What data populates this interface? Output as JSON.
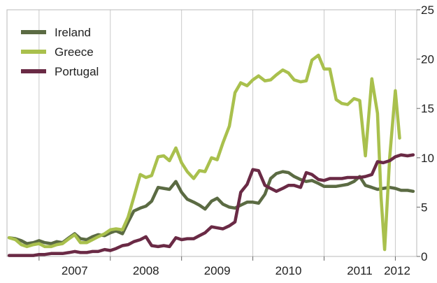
{
  "chart_data": {
    "type": "line",
    "title": "",
    "xlabel": "",
    "ylabel": "",
    "x_ticks": [
      "2007",
      "2008",
      "2009",
      "2010",
      "2011",
      "2012"
    ],
    "y_ticks": [
      "0",
      "5",
      "10",
      "15",
      "20",
      "25"
    ],
    "xlim": [
      2006.55,
      2012.3
    ],
    "ylim": [
      0,
      25
    ],
    "y_axis_side": "right",
    "grid": "vertical gridlines at year boundaries",
    "legend_position": "top-left",
    "series": [
      {
        "name": "Ireland",
        "color": "#5b6b43",
        "points": [
          [
            2006.58,
            1.9
          ],
          [
            2006.67,
            1.8
          ],
          [
            2006.75,
            1.6
          ],
          [
            2006.83,
            1.3
          ],
          [
            2006.92,
            1.4
          ],
          [
            2007.0,
            1.6
          ],
          [
            2007.08,
            1.4
          ],
          [
            2007.17,
            1.3
          ],
          [
            2007.25,
            1.5
          ],
          [
            2007.33,
            1.4
          ],
          [
            2007.42,
            1.9
          ],
          [
            2007.5,
            2.3
          ],
          [
            2007.58,
            1.8
          ],
          [
            2007.67,
            1.7
          ],
          [
            2007.75,
            2.0
          ],
          [
            2007.83,
            2.2
          ],
          [
            2007.92,
            2.1
          ],
          [
            2008.0,
            2.4
          ],
          [
            2008.08,
            2.6
          ],
          [
            2008.17,
            2.3
          ],
          [
            2008.25,
            3.5
          ],
          [
            2008.33,
            4.6
          ],
          [
            2008.42,
            4.9
          ],
          [
            2008.5,
            5.1
          ],
          [
            2008.58,
            5.6
          ],
          [
            2008.67,
            7.0
          ],
          [
            2008.75,
            6.9
          ],
          [
            2008.83,
            6.8
          ],
          [
            2008.92,
            7.6
          ],
          [
            2009.0,
            6.5
          ],
          [
            2009.08,
            5.8
          ],
          [
            2009.17,
            5.5
          ],
          [
            2009.25,
            5.2
          ],
          [
            2009.33,
            4.8
          ],
          [
            2009.42,
            5.6
          ],
          [
            2009.5,
            5.9
          ],
          [
            2009.58,
            5.3
          ],
          [
            2009.67,
            5.0
          ],
          [
            2009.75,
            4.9
          ],
          [
            2009.83,
            5.2
          ],
          [
            2009.92,
            5.5
          ],
          [
            2010.0,
            5.5
          ],
          [
            2010.08,
            5.4
          ],
          [
            2010.17,
            6.3
          ],
          [
            2010.25,
            7.9
          ],
          [
            2010.33,
            8.4
          ],
          [
            2010.42,
            8.6
          ],
          [
            2010.5,
            8.5
          ],
          [
            2010.58,
            8.1
          ],
          [
            2010.67,
            7.8
          ],
          [
            2010.75,
            7.6
          ],
          [
            2010.83,
            7.7
          ],
          [
            2010.92,
            7.4
          ],
          [
            2011.0,
            7.1
          ],
          [
            2011.08,
            7.1
          ],
          [
            2011.17,
            7.1
          ],
          [
            2011.25,
            7.2
          ],
          [
            2011.33,
            7.3
          ],
          [
            2011.42,
            7.6
          ],
          [
            2011.5,
            8.1
          ],
          [
            2011.58,
            7.2
          ],
          [
            2011.67,
            7.0
          ],
          [
            2011.75,
            6.8
          ],
          [
            2011.83,
            6.9
          ],
          [
            2011.92,
            7.0
          ],
          [
            2012.0,
            6.9
          ],
          [
            2012.08,
            6.7
          ],
          [
            2012.17,
            6.7
          ],
          [
            2012.25,
            6.6
          ]
        ]
      },
      {
        "name": "Greece",
        "color": "#a9c04d",
        "points": [
          [
            2006.58,
            1.9
          ],
          [
            2006.67,
            1.7
          ],
          [
            2006.75,
            1.2
          ],
          [
            2006.83,
            1.0
          ],
          [
            2006.92,
            1.2
          ],
          [
            2007.0,
            1.3
          ],
          [
            2007.08,
            1.0
          ],
          [
            2007.17,
            1.0
          ],
          [
            2007.25,
            1.2
          ],
          [
            2007.33,
            1.3
          ],
          [
            2007.42,
            1.8
          ],
          [
            2007.5,
            2.2
          ],
          [
            2007.58,
            1.4
          ],
          [
            2007.67,
            1.4
          ],
          [
            2007.75,
            1.7
          ],
          [
            2007.83,
            2.0
          ],
          [
            2007.92,
            2.3
          ],
          [
            2008.0,
            2.7
          ],
          [
            2008.08,
            2.8
          ],
          [
            2008.17,
            2.7
          ],
          [
            2008.25,
            4.0
          ],
          [
            2008.33,
            6.0
          ],
          [
            2008.42,
            8.3
          ],
          [
            2008.5,
            8.0
          ],
          [
            2008.58,
            8.2
          ],
          [
            2008.67,
            10.1
          ],
          [
            2008.75,
            10.2
          ],
          [
            2008.83,
            9.7
          ],
          [
            2008.92,
            11.0
          ],
          [
            2009.0,
            9.5
          ],
          [
            2009.08,
            8.6
          ],
          [
            2009.17,
            7.9
          ],
          [
            2009.25,
            8.7
          ],
          [
            2009.33,
            8.6
          ],
          [
            2009.42,
            10.0
          ],
          [
            2009.5,
            9.8
          ],
          [
            2009.58,
            11.5
          ],
          [
            2009.67,
            13.2
          ],
          [
            2009.75,
            16.6
          ],
          [
            2009.83,
            17.6
          ],
          [
            2009.92,
            17.3
          ],
          [
            2010.0,
            17.9
          ],
          [
            2010.08,
            18.3
          ],
          [
            2010.17,
            17.8
          ],
          [
            2010.25,
            17.9
          ],
          [
            2010.33,
            18.4
          ],
          [
            2010.42,
            18.9
          ],
          [
            2010.5,
            18.6
          ],
          [
            2010.58,
            17.9
          ],
          [
            2010.67,
            17.7
          ],
          [
            2010.75,
            17.8
          ],
          [
            2010.83,
            19.9
          ],
          [
            2010.92,
            20.4
          ],
          [
            2011.0,
            19.0
          ],
          [
            2011.08,
            19.0
          ],
          [
            2011.17,
            15.9
          ],
          [
            2011.25,
            15.5
          ],
          [
            2011.33,
            15.4
          ],
          [
            2011.42,
            16.0
          ],
          [
            2011.5,
            15.8
          ],
          [
            2011.58,
            10.2
          ],
          [
            2011.67,
            18.0
          ],
          [
            2011.75,
            14.5
          ],
          [
            2011.8,
            6.0
          ],
          [
            2011.85,
            0.7
          ],
          [
            2011.92,
            10.0
          ],
          [
            2012.0,
            16.8
          ],
          [
            2012.06,
            12.0
          ]
        ]
      },
      {
        "name": "Portugal",
        "color": "#6a2a45",
        "points": [
          [
            2006.58,
            0.1
          ],
          [
            2006.67,
            0.1
          ],
          [
            2006.75,
            0.1
          ],
          [
            2006.83,
            0.1
          ],
          [
            2006.92,
            0.1
          ],
          [
            2007.0,
            0.2
          ],
          [
            2007.08,
            0.2
          ],
          [
            2007.17,
            0.3
          ],
          [
            2007.25,
            0.3
          ],
          [
            2007.33,
            0.3
          ],
          [
            2007.42,
            0.4
          ],
          [
            2007.5,
            0.5
          ],
          [
            2007.58,
            0.4
          ],
          [
            2007.67,
            0.4
          ],
          [
            2007.75,
            0.5
          ],
          [
            2007.83,
            0.5
          ],
          [
            2007.92,
            0.7
          ],
          [
            2008.0,
            0.6
          ],
          [
            2008.08,
            0.8
          ],
          [
            2008.17,
            1.1
          ],
          [
            2008.25,
            1.2
          ],
          [
            2008.33,
            1.5
          ],
          [
            2008.42,
            1.7
          ],
          [
            2008.5,
            2.0
          ],
          [
            2008.58,
            1.1
          ],
          [
            2008.67,
            1.0
          ],
          [
            2008.75,
            1.1
          ],
          [
            2008.83,
            1.0
          ],
          [
            2008.92,
            1.9
          ],
          [
            2009.0,
            1.7
          ],
          [
            2009.08,
            1.8
          ],
          [
            2009.17,
            1.8
          ],
          [
            2009.25,
            2.1
          ],
          [
            2009.33,
            2.4
          ],
          [
            2009.42,
            3.0
          ],
          [
            2009.5,
            2.9
          ],
          [
            2009.58,
            2.8
          ],
          [
            2009.67,
            3.1
          ],
          [
            2009.75,
            3.5
          ],
          [
            2009.83,
            6.5
          ],
          [
            2009.92,
            7.3
          ],
          [
            2010.0,
            8.8
          ],
          [
            2010.08,
            8.7
          ],
          [
            2010.17,
            7.2
          ],
          [
            2010.25,
            6.9
          ],
          [
            2010.33,
            6.6
          ],
          [
            2010.42,
            6.9
          ],
          [
            2010.5,
            7.2
          ],
          [
            2010.58,
            7.2
          ],
          [
            2010.67,
            7.0
          ],
          [
            2010.75,
            8.5
          ],
          [
            2010.83,
            8.3
          ],
          [
            2010.92,
            7.8
          ],
          [
            2011.0,
            7.7
          ],
          [
            2011.08,
            7.9
          ],
          [
            2011.17,
            7.9
          ],
          [
            2011.25,
            7.9
          ],
          [
            2011.33,
            8.0
          ],
          [
            2011.42,
            8.0
          ],
          [
            2011.5,
            8.0
          ],
          [
            2011.58,
            8.1
          ],
          [
            2011.67,
            8.3
          ],
          [
            2011.75,
            9.6
          ],
          [
            2011.83,
            9.5
          ],
          [
            2011.92,
            9.7
          ],
          [
            2012.0,
            10.1
          ],
          [
            2012.08,
            10.3
          ],
          [
            2012.17,
            10.2
          ],
          [
            2012.25,
            10.3
          ]
        ]
      }
    ]
  }
}
